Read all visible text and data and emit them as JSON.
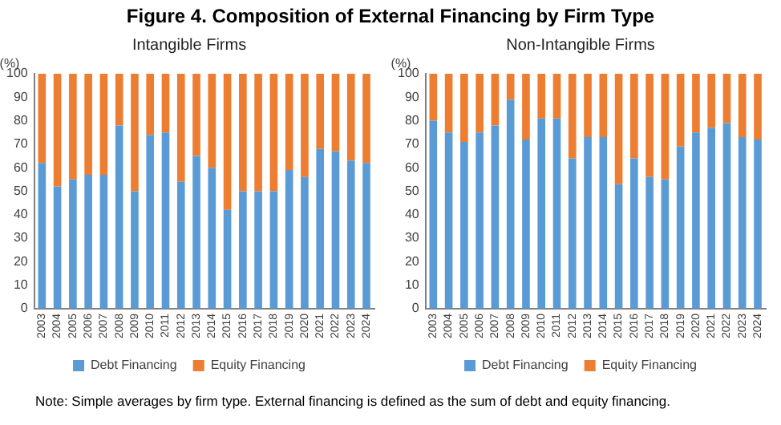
{
  "chart_data": [
    {
      "type": "bar",
      "title": "Figure 4. Composition of External Financing by Firm Type",
      "subtitle": "Intangible Firms",
      "ylabel": "(%)",
      "stacked": true,
      "legend": "bottom",
      "grid": false,
      "categories": [
        "2003",
        "2004",
        "2005",
        "2006",
        "2007",
        "2008",
        "2009",
        "2010",
        "2011",
        "2012",
        "2013",
        "2014",
        "2015",
        "2016",
        "2017",
        "2018",
        "2019",
        "2020",
        "2021",
        "2022",
        "2023",
        "2024"
      ],
      "series": [
        {
          "name": "Debt Financing",
          "color": "#5b9bd5",
          "values": [
            62,
            52,
            55,
            57,
            57,
            78,
            50,
            74,
            75,
            54,
            65,
            60,
            42,
            50,
            50,
            50,
            59,
            56,
            68,
            67,
            63,
            62
          ]
        },
        {
          "name": "Equity Financing",
          "color": "#ed7d31",
          "values": [
            38,
            48,
            45,
            43,
            43,
            22,
            50,
            26,
            25,
            46,
            35,
            40,
            58,
            50,
            50,
            50,
            41,
            44,
            32,
            33,
            37,
            38
          ]
        }
      ],
      "ylim": [
        0,
        100
      ],
      "yticks": [
        0,
        10,
        20,
        30,
        40,
        50,
        60,
        70,
        80,
        90,
        100
      ],
      "annotations": [
        "Note: Simple averages by firm type. External financing is defined as the sum of debt and equity financing."
      ]
    },
    {
      "type": "bar",
      "subtitle": "Non-Intangible Firms",
      "ylabel": "(%)",
      "stacked": true,
      "legend": "bottom",
      "grid": false,
      "categories": [
        "2003",
        "2004",
        "2005",
        "2006",
        "2007",
        "2008",
        "2009",
        "2010",
        "2011",
        "2012",
        "2013",
        "2014",
        "2015",
        "2016",
        "2017",
        "2018",
        "2019",
        "2020",
        "2021",
        "2022",
        "2023",
        "2024"
      ],
      "series": [
        {
          "name": "Debt Financing",
          "color": "#5b9bd5",
          "values": [
            80,
            75,
            71,
            75,
            78,
            89,
            72,
            81,
            81,
            64,
            73,
            73,
            53,
            64,
            56,
            55,
            69,
            75,
            77,
            79,
            73,
            72
          ]
        },
        {
          "name": "Equity Financing",
          "color": "#ed7d31",
          "values": [
            20,
            25,
            29,
            25,
            22,
            11,
            28,
            19,
            19,
            36,
            27,
            27,
            47,
            36,
            44,
            45,
            31,
            25,
            23,
            21,
            27,
            28
          ]
        }
      ],
      "ylim": [
        0,
        100
      ],
      "yticks": [
        0,
        10,
        20,
        30,
        40,
        50,
        60,
        70,
        80,
        90,
        100
      ]
    }
  ]
}
